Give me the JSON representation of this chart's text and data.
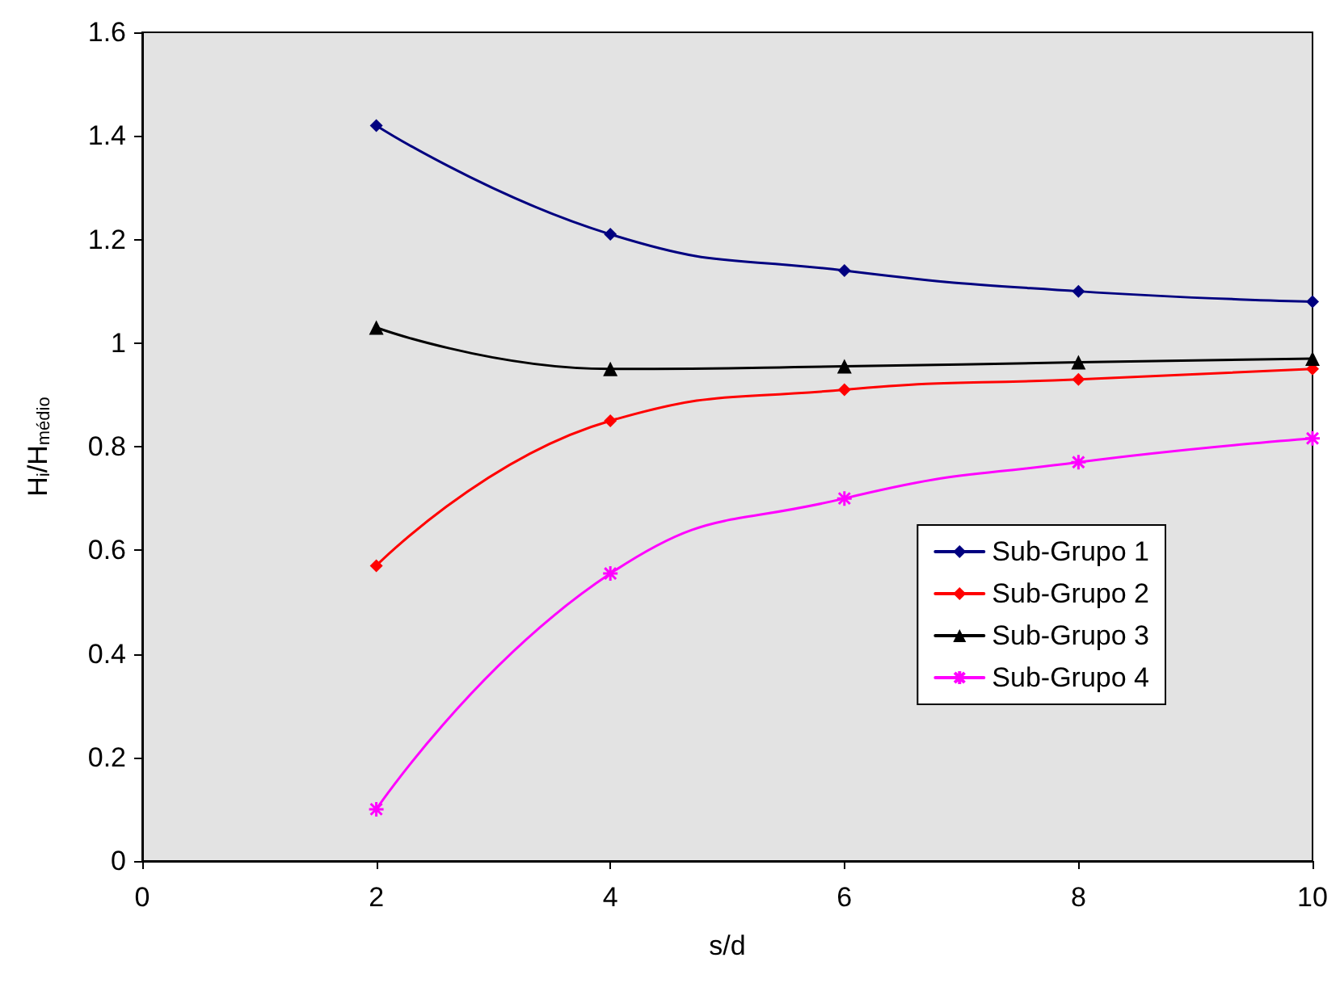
{
  "chart_data": {
    "type": "line",
    "xlabel": "s/d",
    "ylabel": "H$_{i}$/H$_{médio}$",
    "x": [
      2,
      4,
      6,
      8,
      10
    ],
    "series": [
      {
        "name": "Sub-Grupo 1",
        "color": "#000080",
        "marker": "diamond",
        "values": [
          1.42,
          1.21,
          1.14,
          1.1,
          1.08
        ]
      },
      {
        "name": "Sub-Grupo 2",
        "color": "#ff0000",
        "marker": "diamond",
        "values": [
          0.57,
          0.85,
          0.91,
          0.93,
          0.95
        ]
      },
      {
        "name": "Sub-Grupo 3",
        "color": "#000000",
        "marker": "triangle",
        "values": [
          1.03,
          0.95,
          0.955,
          0.963,
          0.97
        ]
      },
      {
        "name": "Sub-Grupo 4",
        "color": "#ff00ff",
        "marker": "cross",
        "values": [
          0.1,
          0.555,
          0.7,
          0.77,
          0.816
        ]
      }
    ],
    "xlim": [
      0,
      10
    ],
    "xticks": [
      0,
      2,
      4,
      6,
      8,
      10
    ],
    "ylim": [
      0,
      1.6
    ],
    "yticks": [
      0,
      0.2,
      0.4,
      0.6,
      0.8,
      1,
      1.2,
      1.4,
      1.6
    ],
    "grid": false,
    "legend": "right",
    "line_style": "solid"
  }
}
